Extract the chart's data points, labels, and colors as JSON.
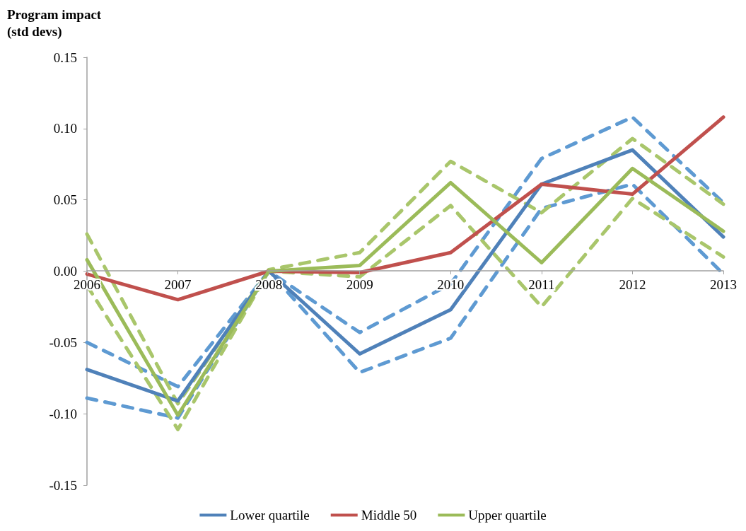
{
  "chart_data": {
    "type": "line",
    "ylabel": "Program impact\n(std devs)",
    "categories": [
      "2006",
      "2007",
      "2008",
      "2009",
      "2010",
      "2011",
      "2012",
      "2013"
    ],
    "ylim": [
      -0.15,
      0.15
    ],
    "yticks": [
      {
        "value": -0.15,
        "label": "-0.15"
      },
      {
        "value": -0.1,
        "label": "-0.10"
      },
      {
        "value": -0.05,
        "label": "-0.05"
      },
      {
        "value": 0,
        "label": "0.00"
      },
      {
        "value": 0.05,
        "label": "0.05"
      },
      {
        "value": 0.1,
        "label": "0.10"
      },
      {
        "value": 0.15,
        "label": "0.15"
      }
    ],
    "legend": "bottom",
    "marker": "none",
    "line_style": "solid",
    "series": [
      {
        "color": "#5e9ad2",
        "line_style": "dashed",
        "values": [
          -0.05,
          -0.081,
          0.0,
          -0.043,
          -0.009,
          0.079,
          0.108,
          0.048
        ]
      },
      {
        "color": "#5e9ad2",
        "line_style": "dashed",
        "values": [
          -0.089,
          -0.103,
          0.0,
          -0.071,
          -0.047,
          0.044,
          0.061,
          -0.002
        ]
      },
      {
        "color": "#a9c66b",
        "line_style": "dashed",
        "values": [
          0.026,
          -0.093,
          0.001,
          0.013,
          0.077,
          0.041,
          0.093,
          0.047
        ]
      },
      {
        "color": "#a9c66b",
        "line_style": "dashed",
        "values": [
          -0.01,
          -0.111,
          0.0,
          -0.004,
          0.046,
          -0.025,
          0.051,
          0.01
        ]
      },
      {
        "name": "Lower quartile",
        "color": "#4f81b9",
        "values": [
          -0.069,
          -0.091,
          0.0,
          -0.058,
          -0.027,
          0.061,
          0.085,
          0.024
        ]
      },
      {
        "name": "Middle 50",
        "color": "#c0504d",
        "values": [
          -0.002,
          -0.02,
          0.0,
          -0.001,
          0.013,
          0.061,
          0.054,
          0.108
        ]
      },
      {
        "name": "Upper quartile",
        "color": "#9bbb59",
        "values": [
          0.008,
          -0.101,
          0.0,
          0.004,
          0.062,
          0.006,
          0.072,
          0.028
        ]
      }
    ]
  }
}
